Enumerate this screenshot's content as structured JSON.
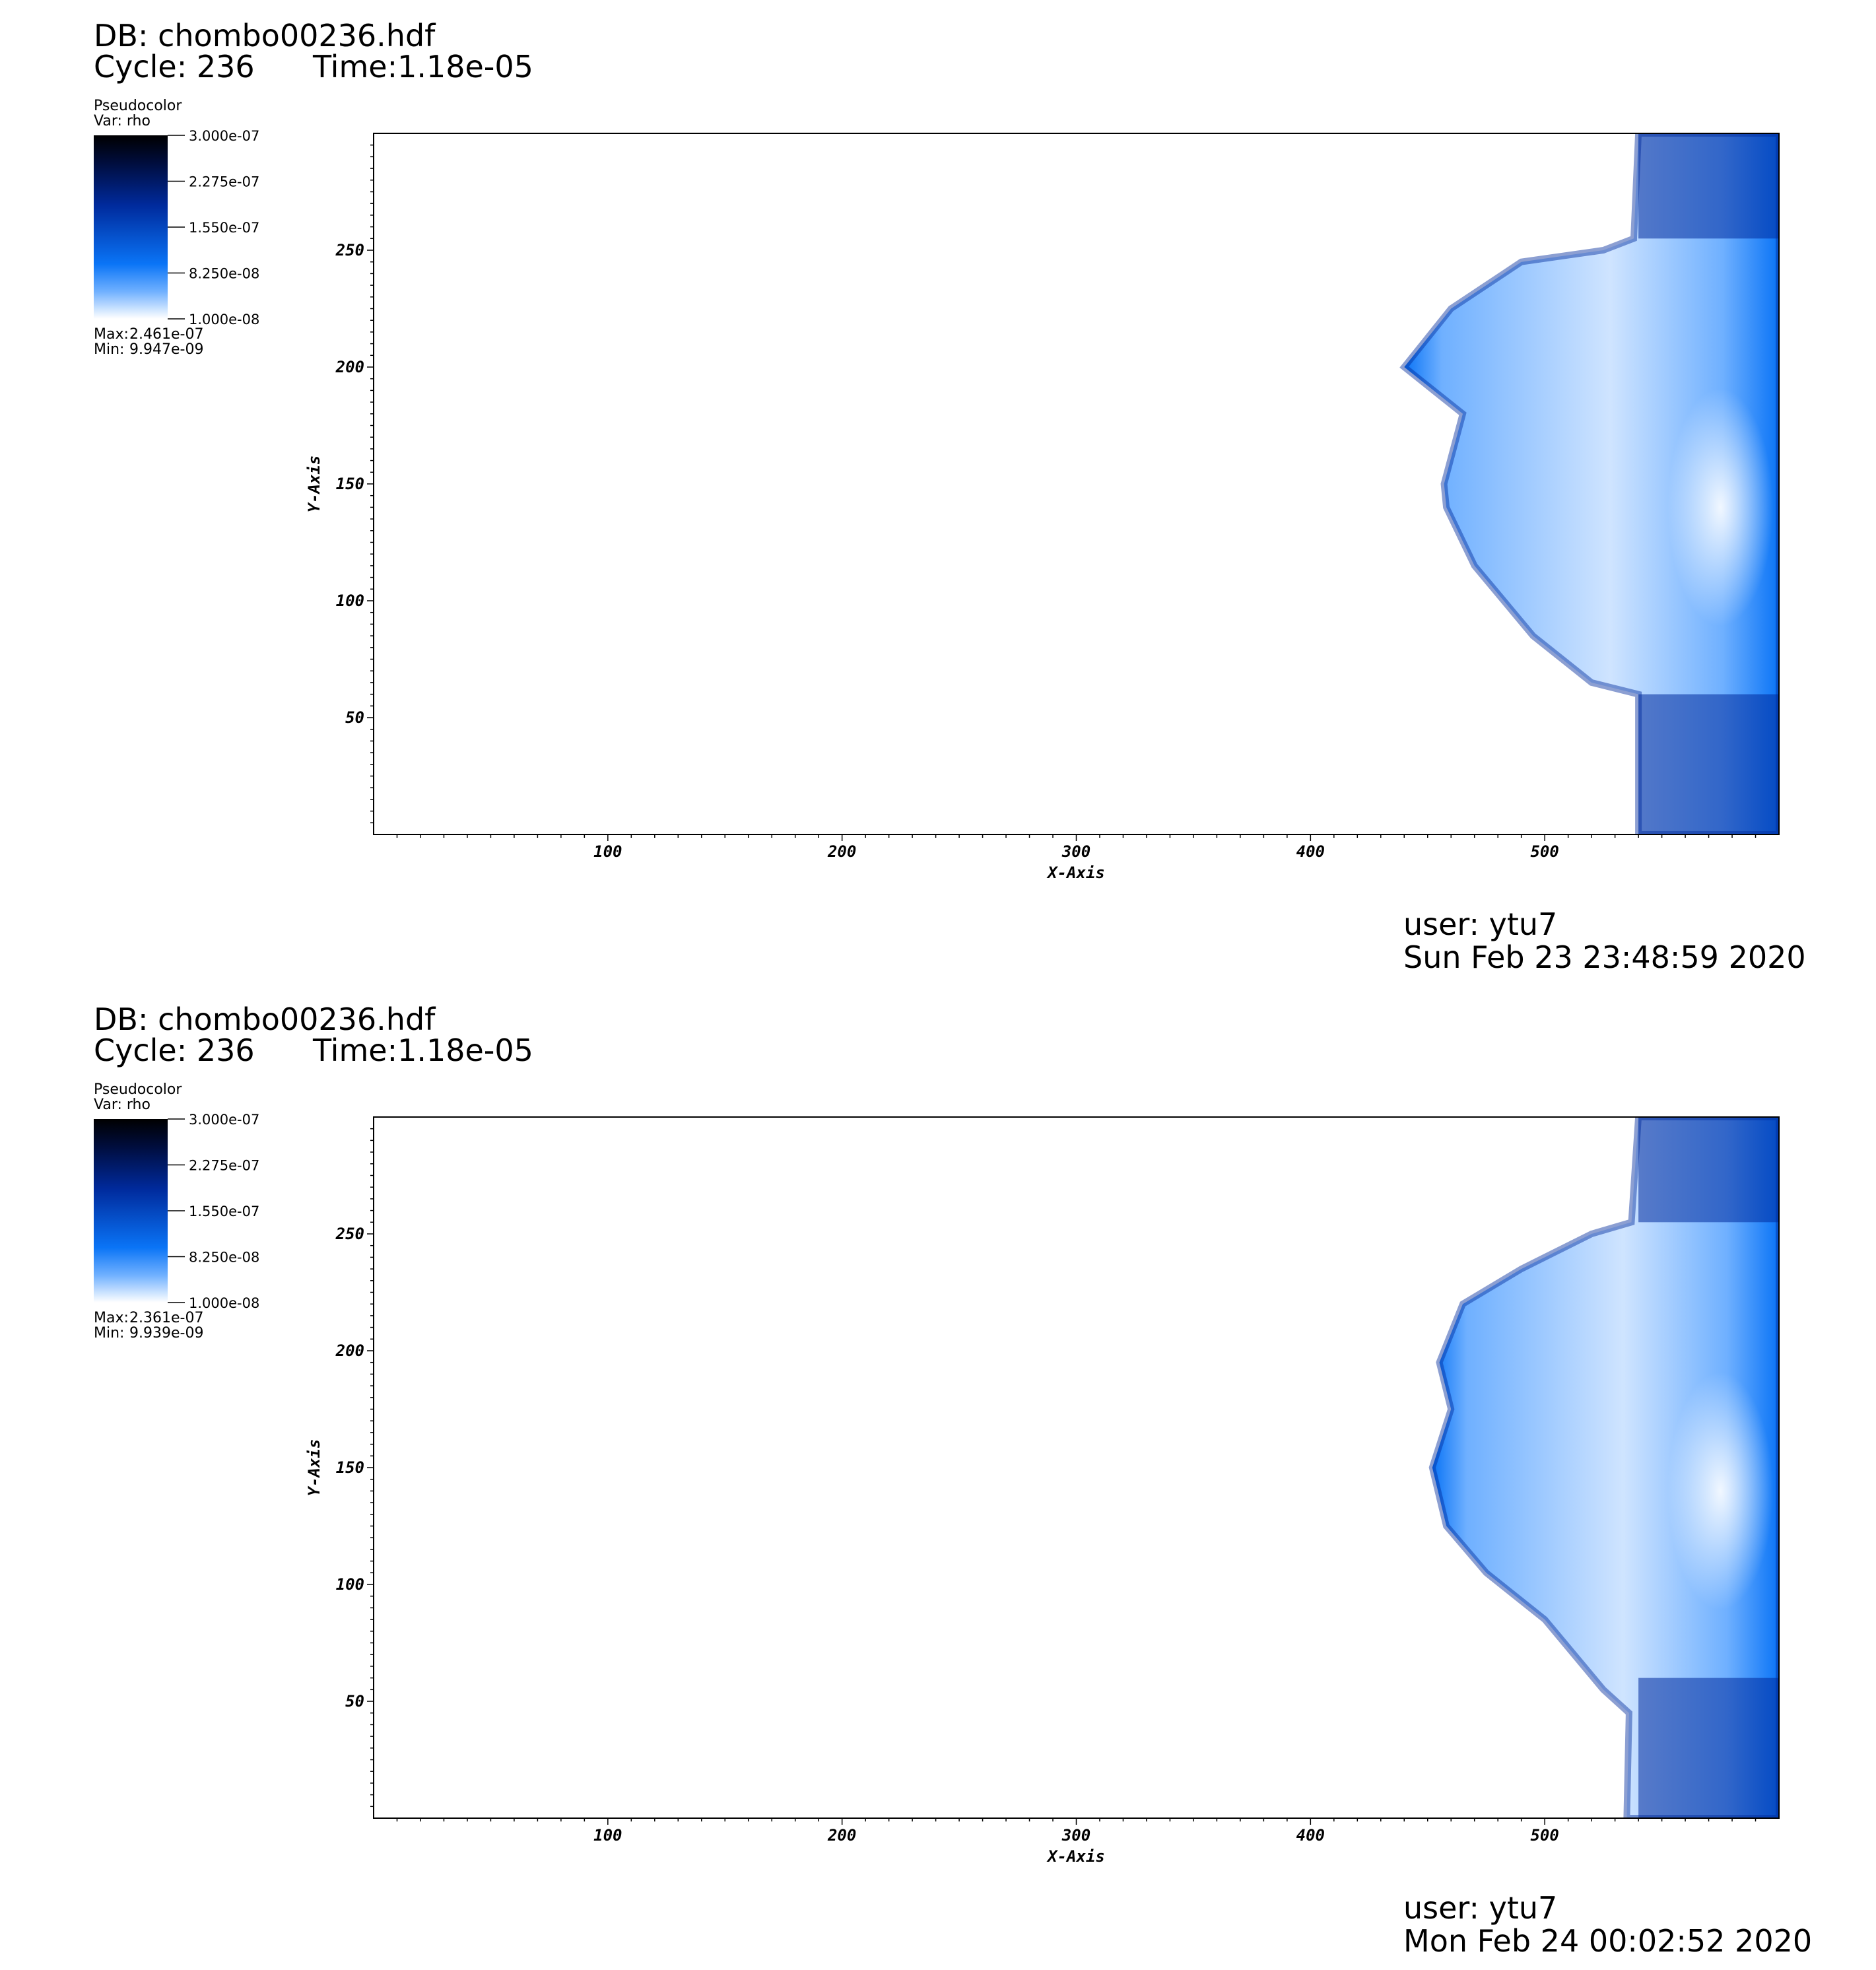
{
  "panels": [
    {
      "db_label": "DB: chombo00236.hdf",
      "cycle_label": "Cycle: 236",
      "time_label": "Time:1.18e-05",
      "legend": {
        "title": "Pseudocolor",
        "var": "Var: rho",
        "ticks": [
          "3.000e-07",
          "2.275e-07",
          "1.550e-07",
          "8.250e-08",
          "1.000e-08"
        ],
        "max_label": "Max:",
        "max_value": "2.461e-07",
        "min_label": "Min:",
        "min_value": "9.947e-09"
      },
      "user": "user: ytu7",
      "timestamp": "Sun Feb 23 23:48:59 2020"
    },
    {
      "db_label": "DB: chombo00236.hdf",
      "cycle_label": "Cycle: 236",
      "time_label": "Time:1.18e-05",
      "legend": {
        "title": "Pseudocolor",
        "var": "Var: rho",
        "ticks": [
          "3.000e-07",
          "2.275e-07",
          "1.550e-07",
          "8.250e-08",
          "1.000e-08"
        ],
        "max_label": "Max:",
        "max_value": "2.361e-07",
        "min_label": "Min:",
        "min_value": "9.939e-09"
      },
      "user": "user: ytu7",
      "timestamp": "Mon Feb 24 00:02:52 2020"
    }
  ],
  "chart_data": [
    {
      "type": "heatmap",
      "variable": "rho",
      "xlabel": "X-Axis",
      "ylabel": "Y-Axis",
      "xlim": [
        0,
        600
      ],
      "ylim": [
        0,
        300
      ],
      "x_ticks": [
        100,
        200,
        300,
        400,
        500
      ],
      "y_ticks": [
        50,
        100,
        150,
        200,
        250
      ],
      "x_tick_labels": [
        "100",
        "200",
        "300",
        "400",
        "500"
      ],
      "y_tick_labels": [
        "50",
        "100",
        "150",
        "200",
        "250"
      ],
      "colorbar_range": [
        1e-08,
        3e-07
      ],
      "data_max": 2.461e-07,
      "data_min": 9.947e-09,
      "colormap": [
        "#ffffff",
        "#6fb0ff",
        "#0a74f6",
        "#002a9c",
        "#000d3d",
        "#000000"
      ],
      "feature_boundary": [
        [
          540,
          300
        ],
        [
          538,
          255
        ],
        [
          525,
          250
        ],
        [
          490,
          245
        ],
        [
          460,
          225
        ],
        [
          440,
          200
        ],
        [
          465,
          180
        ],
        [
          457,
          150
        ],
        [
          458,
          140
        ],
        [
          470,
          115
        ],
        [
          495,
          85
        ],
        [
          520,
          65
        ],
        [
          540,
          60
        ],
        [
          540,
          0
        ]
      ]
    },
    {
      "type": "heatmap",
      "variable": "rho",
      "xlabel": "X-Axis",
      "ylabel": "Y-Axis",
      "xlim": [
        0,
        600
      ],
      "ylim": [
        0,
        300
      ],
      "x_ticks": [
        100,
        200,
        300,
        400,
        500
      ],
      "y_ticks": [
        50,
        100,
        150,
        200,
        250
      ],
      "x_tick_labels": [
        "100",
        "200",
        "300",
        "400",
        "500"
      ],
      "y_tick_labels": [
        "50",
        "100",
        "150",
        "200",
        "250"
      ],
      "colorbar_range": [
        1e-08,
        3e-07
      ],
      "data_max": 2.361e-07,
      "data_min": 9.939e-09,
      "colormap": [
        "#ffffff",
        "#6fb0ff",
        "#0a74f6",
        "#002a9c",
        "#000d3d",
        "#000000"
      ],
      "feature_boundary": [
        [
          540,
          300
        ],
        [
          537,
          255
        ],
        [
          520,
          250
        ],
        [
          490,
          235
        ],
        [
          465,
          220
        ],
        [
          455,
          195
        ],
        [
          460,
          175
        ],
        [
          452,
          150
        ],
        [
          458,
          125
        ],
        [
          475,
          105
        ],
        [
          500,
          85
        ],
        [
          525,
          55
        ],
        [
          536,
          45
        ],
        [
          535,
          0
        ]
      ]
    }
  ]
}
